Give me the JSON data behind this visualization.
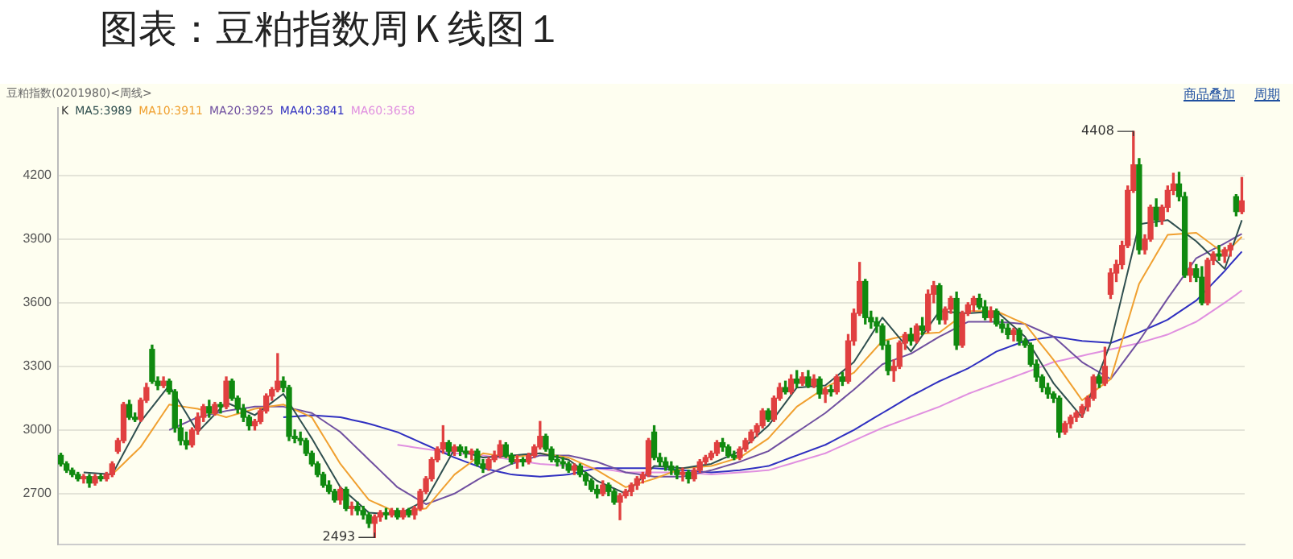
{
  "chart_data": {
    "type": "candlestick",
    "title": "图表：豆粕指数周Ｋ线图１",
    "subtitle": "豆粕指数(0201980)<周线>",
    "legend_title": "K",
    "annotations": [
      "商品叠加",
      "周期",
      "4408",
      "2493"
    ],
    "categories": [
      null,
      null,
      null,
      null,
      null,
      null,
      null,
      null,
      null,
      null,
      null,
      null,
      null,
      null,
      null,
      null,
      null,
      null,
      null,
      null,
      null,
      null,
      null,
      null,
      null,
      null,
      null,
      null,
      null,
      null,
      null,
      null,
      null,
      null,
      null,
      null,
      null,
      null,
      null,
      null,
      null,
      null,
      null,
      null,
      null,
      null,
      null,
      null,
      null,
      null,
      null,
      null,
      null,
      null,
      null,
      null,
      null,
      null,
      null,
      null,
      null,
      null,
      null,
      null,
      null,
      null,
      null,
      null,
      null,
      null,
      null,
      null,
      null,
      null,
      null,
      null,
      null,
      null,
      null,
      null,
      null,
      null,
      null,
      null,
      null,
      null,
      null,
      null,
      null,
      null,
      null,
      null,
      null,
      null,
      null,
      null,
      null,
      null,
      null,
      null,
      null,
      null,
      null,
      null,
      null,
      null,
      null,
      null,
      null,
      null,
      null,
      null,
      null,
      null,
      null,
      null,
      null,
      null,
      null,
      null,
      null,
      null,
      null,
      null,
      null,
      null,
      null,
      null,
      null,
      null,
      null,
      null,
      null,
      null,
      null,
      null,
      null,
      null,
      null,
      null,
      null,
      null,
      null,
      null,
      null,
      null,
      null,
      null,
      null,
      null,
      null,
      null,
      null,
      null,
      null,
      null,
      null,
      null,
      null,
      null,
      null,
      null,
      null,
      null,
      null,
      null,
      null,
      null,
      null,
      null,
      null,
      null,
      null,
      null,
      null,
      null,
      null,
      null,
      null,
      null,
      null,
      null,
      null,
      null,
      null,
      null,
      null,
      null,
      null,
      null,
      null,
      null,
      null,
      null,
      null,
      null,
      null,
      null,
      null,
      null,
      null,
      null,
      null,
      null,
      null,
      null,
      null,
      null
    ],
    "ohlc": [
      [
        2880,
        2890,
        2830,
        2840
      ],
      [
        2840,
        2850,
        2800,
        2810
      ],
      [
        2810,
        2820,
        2780,
        2790
      ],
      [
        2790,
        2800,
        2760,
        2770
      ],
      [
        2770,
        2790,
        2750,
        2780
      ],
      [
        2780,
        2790,
        2730,
        2750
      ],
      [
        2750,
        2790,
        2740,
        2780
      ],
      [
        2780,
        2790,
        2760,
        2770
      ],
      [
        2770,
        2800,
        2760,
        2790
      ],
      [
        2790,
        2850,
        2780,
        2840
      ],
      [
        2900,
        2960,
        2890,
        2950
      ],
      [
        2950,
        3130,
        2940,
        3120
      ],
      [
        3120,
        3140,
        3050,
        3060
      ],
      [
        3060,
        3080,
        3040,
        3050
      ],
      [
        3050,
        3150,
        3040,
        3140
      ],
      [
        3140,
        3220,
        3130,
        3200
      ],
      [
        3380,
        3400,
        3220,
        3230
      ],
      [
        3230,
        3250,
        3190,
        3210
      ],
      [
        3210,
        3250,
        3200,
        3230
      ],
      [
        3230,
        3240,
        3170,
        3180
      ],
      [
        3180,
        3190,
        2990,
        3010
      ],
      [
        3010,
        3050,
        2930,
        2950
      ],
      [
        2950,
        2990,
        2910,
        2930
      ],
      [
        2930,
        3010,
        2920,
        3000
      ],
      [
        3000,
        3080,
        2980,
        3060
      ],
      [
        3060,
        3120,
        3040,
        3110
      ],
      [
        3110,
        3140,
        3060,
        3080
      ],
      [
        3080,
        3130,
        3070,
        3120
      ],
      [
        3120,
        3130,
        3080,
        3110
      ],
      [
        3110,
        3250,
        3100,
        3230
      ],
      [
        3230,
        3240,
        3140,
        3150
      ],
      [
        3150,
        3160,
        3080,
        3100
      ],
      [
        3100,
        3120,
        3040,
        3060
      ],
      [
        3060,
        3070,
        3000,
        3020
      ],
      [
        3020,
        3050,
        3000,
        3040
      ],
      [
        3040,
        3100,
        3030,
        3090
      ],
      [
        3090,
        3170,
        3080,
        3160
      ],
      [
        3160,
        3200,
        3140,
        3190
      ],
      [
        3190,
        3360,
        3180,
        3230
      ],
      [
        3230,
        3250,
        3180,
        3200
      ],
      [
        3200,
        3210,
        2950,
        2970
      ],
      [
        2970,
        3000,
        2940,
        2960
      ],
      [
        2960,
        2990,
        2930,
        2950
      ],
      [
        2950,
        2960,
        2880,
        2890
      ],
      [
        2890,
        2900,
        2830,
        2840
      ],
      [
        2840,
        2850,
        2780,
        2790
      ],
      [
        2790,
        2800,
        2730,
        2740
      ],
      [
        2740,
        2760,
        2700,
        2710
      ],
      [
        2710,
        2720,
        2660,
        2670
      ],
      [
        2670,
        2730,
        2650,
        2720
      ],
      [
        2720,
        2730,
        2620,
        2630
      ],
      [
        2630,
        2660,
        2600,
        2640
      ],
      [
        2640,
        2660,
        2600,
        2620
      ],
      [
        2620,
        2640,
        2580,
        2600
      ],
      [
        2600,
        2610,
        2540,
        2560
      ],
      [
        2560,
        2600,
        2493,
        2590
      ],
      [
        2590,
        2620,
        2570,
        2610
      ],
      [
        2610,
        2630,
        2580,
        2600
      ],
      [
        2600,
        2630,
        2590,
        2620
      ],
      [
        2620,
        2630,
        2580,
        2590
      ],
      [
        2590,
        2630,
        2580,
        2620
      ],
      [
        2620,
        2630,
        2590,
        2600
      ],
      [
        2600,
        2640,
        2580,
        2630
      ],
      [
        2630,
        2720,
        2620,
        2710
      ],
      [
        2710,
        2780,
        2700,
        2770
      ],
      [
        2770,
        2870,
        2760,
        2860
      ],
      [
        2860,
        2920,
        2850,
        2910
      ],
      [
        2910,
        3020,
        2890,
        2940
      ],
      [
        2940,
        2950,
        2880,
        2900
      ],
      [
        2900,
        2930,
        2880,
        2920
      ],
      [
        2920,
        2930,
        2880,
        2900
      ],
      [
        2900,
        2920,
        2870,
        2890
      ],
      [
        2890,
        2910,
        2860,
        2900
      ],
      [
        2900,
        2910,
        2830,
        2840
      ],
      [
        2840,
        2860,
        2800,
        2820
      ],
      [
        2820,
        2870,
        2810,
        2860
      ],
      [
        2860,
        2900,
        2850,
        2880
      ],
      [
        2880,
        2950,
        2870,
        2930
      ],
      [
        2930,
        2940,
        2870,
        2880
      ],
      [
        2880,
        2890,
        2840,
        2850
      ],
      [
        2850,
        2880,
        2820,
        2860
      ],
      [
        2860,
        2870,
        2830,
        2850
      ],
      [
        2850,
        2890,
        2840,
        2880
      ],
      [
        2880,
        2930,
        2870,
        2920
      ],
      [
        2920,
        3040,
        2910,
        2970
      ],
      [
        2970,
        2980,
        2900,
        2910
      ],
      [
        2910,
        2920,
        2850,
        2860
      ],
      [
        2860,
        2880,
        2830,
        2850
      ],
      [
        2850,
        2870,
        2820,
        2840
      ],
      [
        2840,
        2850,
        2800,
        2810
      ],
      [
        2810,
        2840,
        2790,
        2830
      ],
      [
        2830,
        2840,
        2780,
        2790
      ],
      [
        2790,
        2800,
        2740,
        2760
      ],
      [
        2760,
        2770,
        2710,
        2720
      ],
      [
        2720,
        2740,
        2680,
        2700
      ],
      [
        2700,
        2760,
        2690,
        2740
      ],
      [
        2740,
        2750,
        2690,
        2710
      ],
      [
        2710,
        2720,
        2650,
        2660
      ],
      [
        2660,
        2700,
        2577,
        2690
      ],
      [
        2690,
        2720,
        2680,
        2710
      ],
      [
        2710,
        2750,
        2690,
        2740
      ],
      [
        2740,
        2780,
        2720,
        2770
      ],
      [
        2770,
        2800,
        2750,
        2790
      ],
      [
        2790,
        2960,
        2780,
        2950
      ],
      [
        2990,
        3020,
        2860,
        2870
      ],
      [
        2870,
        2890,
        2830,
        2850
      ],
      [
        2850,
        2870,
        2810,
        2830
      ],
      [
        2830,
        2850,
        2790,
        2810
      ],
      [
        2810,
        2830,
        2770,
        2790
      ],
      [
        2790,
        2820,
        2760,
        2800
      ],
      [
        2800,
        2810,
        2750,
        2770
      ],
      [
        2770,
        2820,
        2760,
        2810
      ],
      [
        2810,
        2860,
        2800,
        2850
      ],
      [
        2850,
        2880,
        2840,
        2870
      ],
      [
        2870,
        2900,
        2860,
        2890
      ],
      [
        2890,
        2950,
        2880,
        2940
      ],
      [
        2940,
        2960,
        2900,
        2920
      ],
      [
        2920,
        2930,
        2870,
        2880
      ],
      [
        2880,
        2900,
        2860,
        2870
      ],
      [
        2870,
        2920,
        2860,
        2910
      ],
      [
        2910,
        2960,
        2900,
        2950
      ],
      [
        2950,
        3000,
        2940,
        2990
      ],
      [
        2990,
        3030,
        2970,
        3020
      ],
      [
        3020,
        3100,
        3010,
        3090
      ],
      [
        3090,
        3100,
        3040,
        3050
      ],
      [
        3050,
        3160,
        3040,
        3150
      ],
      [
        3150,
        3220,
        3140,
        3200
      ],
      [
        3200,
        3230,
        3170,
        3180
      ],
      [
        3180,
        3260,
        3170,
        3240
      ],
      [
        3240,
        3280,
        3200,
        3220
      ],
      [
        3220,
        3270,
        3210,
        3250
      ],
      [
        3250,
        3280,
        3200,
        3210
      ],
      [
        3210,
        3260,
        3200,
        3240
      ],
      [
        3240,
        3250,
        3150,
        3170
      ],
      [
        3170,
        3200,
        3130,
        3190
      ],
      [
        3190,
        3210,
        3160,
        3180
      ],
      [
        3180,
        3260,
        3170,
        3250
      ],
      [
        3250,
        3270,
        3210,
        3230
      ],
      [
        3230,
        3450,
        3220,
        3420
      ],
      [
        3420,
        3570,
        3400,
        3550
      ],
      [
        3550,
        3790,
        3540,
        3700
      ],
      [
        3700,
        3710,
        3500,
        3530
      ],
      [
        3530,
        3560,
        3480,
        3510
      ],
      [
        3510,
        3530,
        3460,
        3490
      ],
      [
        3490,
        3500,
        3380,
        3400
      ],
      [
        3400,
        3420,
        3260,
        3280
      ],
      [
        3280,
        3330,
        3230,
        3300
      ],
      [
        3300,
        3420,
        3290,
        3410
      ],
      [
        3410,
        3460,
        3380,
        3450
      ],
      [
        3450,
        3480,
        3400,
        3420
      ],
      [
        3420,
        3500,
        3410,
        3490
      ],
      [
        3490,
        3530,
        3450,
        3470
      ],
      [
        3470,
        3660,
        3460,
        3640
      ],
      [
        3640,
        3700,
        3600,
        3680
      ],
      [
        3680,
        3690,
        3500,
        3520
      ],
      [
        3520,
        3580,
        3500,
        3570
      ],
      [
        3570,
        3630,
        3550,
        3620
      ],
      [
        3620,
        3650,
        3380,
        3400
      ],
      [
        3400,
        3560,
        3390,
        3550
      ],
      [
        3550,
        3600,
        3540,
        3590
      ],
      [
        3590,
        3630,
        3560,
        3620
      ],
      [
        3620,
        3640,
        3570,
        3580
      ],
      [
        3580,
        3610,
        3520,
        3530
      ],
      [
        3530,
        3580,
        3510,
        3560
      ],
      [
        3560,
        3570,
        3490,
        3500
      ],
      [
        3500,
        3520,
        3460,
        3480
      ],
      [
        3480,
        3500,
        3430,
        3450
      ],
      [
        3450,
        3480,
        3420,
        3470
      ],
      [
        3470,
        3480,
        3400,
        3420
      ],
      [
        3420,
        3430,
        3390,
        3400
      ],
      [
        3400,
        3410,
        3300,
        3310
      ],
      [
        3310,
        3330,
        3230,
        3250
      ],
      [
        3250,
        3260,
        3180,
        3200
      ],
      [
        3200,
        3220,
        3150,
        3170
      ],
      [
        3170,
        3180,
        3130,
        3150
      ],
      [
        3150,
        3160,
        2965,
        2990
      ],
      [
        2990,
        3040,
        2980,
        3030
      ],
      [
        3030,
        3070,
        3010,
        3060
      ],
      [
        3060,
        3090,
        3040,
        3080
      ],
      [
        3080,
        3120,
        3060,
        3110
      ],
      [
        3110,
        3160,
        3090,
        3150
      ],
      [
        3150,
        3260,
        3140,
        3250
      ],
      [
        3250,
        3260,
        3200,
        3220
      ],
      [
        3220,
        3390,
        3210,
        3300
      ],
      [
        3640,
        3760,
        3620,
        3740
      ],
      [
        3740,
        3800,
        3700,
        3780
      ],
      [
        3780,
        3890,
        3760,
        3870
      ],
      [
        3870,
        4150,
        3860,
        4130
      ],
      [
        4130,
        4408,
        4120,
        4250
      ],
      [
        4250,
        4280,
        3830,
        3850
      ],
      [
        3850,
        3920,
        3830,
        3900
      ],
      [
        3900,
        4060,
        3890,
        4050
      ],
      [
        4050,
        4090,
        3960,
        3990
      ],
      [
        3990,
        4060,
        3970,
        4050
      ],
      [
        4050,
        4150,
        4030,
        4130
      ],
      [
        4130,
        4210,
        4110,
        4160
      ],
      [
        4160,
        4215,
        4080,
        4100
      ],
      [
        4100,
        4120,
        3720,
        3730
      ],
      [
        3730,
        3790,
        3700,
        3760
      ],
      [
        3760,
        3780,
        3700,
        3720
      ],
      [
        3720,
        3770,
        3590,
        3600
      ],
      [
        3600,
        3810,
        3590,
        3800
      ],
      [
        3800,
        3840,
        3780,
        3830
      ],
      [
        3830,
        3870,
        3800,
        3820
      ],
      [
        3820,
        3860,
        3790,
        3850
      ],
      [
        3850,
        3880,
        3820,
        3870
      ],
      [
        4100,
        4110,
        4010,
        4030
      ],
      [
        4030,
        4190,
        4020,
        4080
      ]
    ],
    "series": [
      {
        "type": "line",
        "name": "MA5:3989",
        "color": "#2f4f4f",
        "values": [
          null,
          null,
          null,
          null,
          2800,
          2798,
          2796,
          2794,
          2792,
          2790,
          2840,
          2890,
          2940,
          2990,
          3040,
          3074,
          3108,
          3142,
          3176,
          3210,
          3166,
          3122,
          3078,
          3034,
          2990,
          3018,
          3046,
          3074,
          3102,
          3130,
          3118,
          3106,
          3094,
          3082,
          3070,
          3090,
          3110,
          3130,
          3150,
          3170,
          3128,
          3086,
          3044,
          3002,
          2960,
          2914,
          2868,
          2822,
          2776,
          2730,
          2706,
          2682,
          2658,
          2634,
          2610,
          2608,
          2606,
          2604,
          2602,
          2600,
          2614,
          2628,
          2642,
          2656,
          2670,
          2718,
          2766,
          2814,
          2862,
          2910,
          2902,
          2894,
          2886,
          2878,
          2870,
          2872,
          2874,
          2876,
          2878,
          2880,
          2882,
          2884,
          2886,
          2888,
          2890,
          2884,
          2878,
          2872,
          2866,
          2860,
          2840,
          2820,
          2800,
          2780,
          2760,
          2748,
          2736,
          2724,
          2712,
          2700,
          2726,
          2752,
          2778,
          2804,
          2830,
          2828,
          2826,
          2824,
          2822,
          2820,
          2824,
          2828,
          2832,
          2836,
          2840,
          2852,
          2864,
          2876,
          2888,
          2900,
          2924,
          2948,
          2972,
          2996,
          3020,
          3056,
          3092,
          3128,
          3164,
          3200,
          3202,
          3204,
          3206,
          3208,
          3210,
          3232,
          3254,
          3276,
          3298,
          3320,
          3362,
          3404,
          3446,
          3488,
          3530,
          3498,
          3466,
          3434,
          3402,
          3370,
          3408,
          3446,
          3484,
          3522,
          3560,
          3558,
          3556,
          3554,
          3552,
          3550,
          3552,
          3554,
          3556,
          3558,
          3560,
          3536,
          3512,
          3488,
          3464,
          3440,
          3396,
          3352,
          3308,
          3264,
          3220,
          3188,
          3156,
          3124,
          3092,
          3060,
          3130,
          3200,
          3270,
          3340,
          3410,
          3522,
          3634,
          3746,
          3858,
          3970,
          3974,
          3978,
          3982,
          3986,
          3990,
          3970,
          3950,
          3930,
          3910,
          3890,
          3864,
          3838,
          3812,
          3786,
          3760,
          3836,
          3912,
          3989
        ]
      },
      {
        "type": "line",
        "name": "MA10:3911",
        "color": "#f0a030",
        "values": [
          null,
          null,
          null,
          null,
          null,
          null,
          null,
          null,
          null,
          2790,
          2816,
          2842,
          2868,
          2894,
          2920,
          2960,
          3000,
          3040,
          3080,
          3120,
          3116,
          3112,
          3108,
          3104,
          3100,
          3092,
          3084,
          3076,
          3068,
          3060,
          3068,
          3076,
          3084,
          3092,
          3100,
          3104,
          3108,
          3112,
          3116,
          3120,
          3108,
          3096,
          3084,
          3072,
          3060,
          3016,
          2972,
          2928,
          2884,
          2840,
          2806,
          2772,
          2738,
          2704,
          2670,
          2658,
          2646,
          2634,
          2622,
          2610,
          2614,
          2618,
          2622,
          2626,
          2630,
          2662,
          2694,
          2726,
          2758,
          2790,
          2810,
          2830,
          2850,
          2870,
          2890,
          2886,
          2882,
          2878,
          2874,
          2870,
          2874,
          2878,
          2882,
          2886,
          2890,
          2886,
          2882,
          2878,
          2874,
          2870,
          2858,
          2846,
          2834,
          2822,
          2810,
          2794,
          2778,
          2762,
          2746,
          2730,
          2738,
          2746,
          2754,
          2762,
          2770,
          2780,
          2790,
          2800,
          2810,
          2820,
          2822,
          2824,
          2826,
          2828,
          2830,
          2838,
          2846,
          2854,
          2862,
          2870,
          2888,
          2906,
          2924,
          2942,
          2960,
          2990,
          3020,
          3050,
          3080,
          3110,
          3128,
          3146,
          3164,
          3182,
          3200,
          3214,
          3228,
          3242,
          3256,
          3270,
          3300,
          3330,
          3360,
          3390,
          3420,
          3426,
          3432,
          3438,
          3444,
          3450,
          3452,
          3454,
          3456,
          3458,
          3460,
          3480,
          3500,
          3520,
          null,
          3560,
          3560,
          3560,
          3560,
          3560,
          3560,
          3548,
          3536,
          3524,
          3512,
          3500,
          3466,
          3432,
          3398,
          3364,
          3330,
          3292,
          3254,
          3216,
          3178,
          3140,
          3160,
          3180,
          3200,
          3220,
          3240,
          3330,
          3420,
          3510,
          3600,
          3690,
          3736,
          3782,
          3828,
          3874,
          3920,
          3922,
          3924,
          3926,
          3928,
          3930,
          3910,
          3890,
          3870,
          3850,
          3830,
          3857,
          3884,
          3911
        ]
      },
      {
        "type": "line",
        "name": "MA20:3925",
        "color": "#7050a0",
        "values": [
          null,
          null,
          null,
          null,
          null,
          null,
          null,
          null,
          null,
          null,
          null,
          null,
          null,
          null,
          null,
          null,
          null,
          null,
          null,
          3000,
          3012,
          3024,
          3036,
          3048,
          3060,
          3066,
          3072,
          3078,
          3084,
          3090,
          3094,
          3098,
          3102,
          3106,
          3110,
          3110,
          3110,
          3110,
          3110,
          3110,
          3104,
          3098,
          3092,
          3086,
          3080,
          3062,
          3044,
          3026,
          3008,
          2990,
          2964,
          2938,
          2912,
          2886,
          2860,
          2834,
          2808,
          2782,
          2756,
          2730,
          2714,
          2698,
          2682,
          2666,
          2650,
          2660,
          2670,
          2680,
          2690,
          2700,
          2716,
          2732,
          2748,
          2764,
          2780,
          2792,
          2804,
          2816,
          2828,
          2840,
          2848,
          2856,
          2864,
          2872,
          2880,
          2880,
          2880,
          2880,
          2880,
          2880,
          2874,
          2868,
          2862,
          2856,
          2850,
          2840,
          2830,
          2820,
          2810,
          2800,
          2796,
          2792,
          2788,
          2784,
          2780,
          2780,
          2780,
          2780,
          2780,
          2780,
          2786,
          2792,
          2798,
          2804,
          2810,
          2818,
          2826,
          2834,
          2842,
          2850,
          2860,
          2870,
          2880,
          2890,
          2900,
          2918,
          2936,
          2954,
          2972,
          2990,
          3008,
          3026,
          3044,
          3062,
          3080,
          3102,
          3124,
          3146,
          3168,
          3190,
          3214,
          3238,
          3262,
          3286,
          3310,
          3320,
          3330,
          3340,
          3350,
          3360,
          3376,
          3392,
          3408,
          3424,
          3440,
          3454,
          3468,
          3482,
          3496,
          3510,
          3510,
          3510,
          3510,
          3510,
          3510,
          3508,
          3506,
          3504,
          3502,
          3500,
          3488,
          3476,
          3464,
          3452,
          3440,
          3416,
          3392,
          3368,
          3344,
          3320,
          3304,
          3288,
          3272,
          3256,
          3240,
          3276,
          3312,
          3348,
          3384,
          3420,
          3460,
          3500,
          3540,
          3580,
          3620,
          3658,
          3696,
          3734,
          3772,
          3810,
          3824,
          3838,
          3852,
          3866,
          3880,
          3895,
          3910,
          3925
        ]
      },
      {
        "type": "line",
        "name": "MA40:3841",
        "color": "#3030c0",
        "values": [
          null,
          null,
          null,
          null,
          null,
          null,
          null,
          null,
          null,
          null,
          null,
          null,
          null,
          null,
          null,
          null,
          null,
          null,
          null,
          null,
          null,
          null,
          null,
          null,
          null,
          null,
          null,
          null,
          null,
          null,
          null,
          null,
          null,
          null,
          null,
          null,
          null,
          null,
          null,
          3060,
          3062,
          3064,
          3066,
          3068,
          3070,
          3068,
          3066,
          3064,
          3062,
          3060,
          3054,
          3048,
          3042,
          3036,
          3030,
          3022,
          3014,
          3006,
          2998,
          2990,
          2978,
          2966,
          2954,
          2942,
          2930,
          2918,
          2906,
          2894,
          2882,
          2870,
          2860,
          2850,
          2840,
          2830,
          2820,
          2814,
          2808,
          2802,
          2796,
          2790,
          2788,
          2786,
          2784,
          2782,
          2780,
          2782,
          2784,
          2786,
          2788,
          2790,
          2796,
          2802,
          2808,
          2814,
          2820,
          2820,
          2820,
          2820,
          2820,
          2820,
          2820,
          2820,
          2820,
          2820,
          2820,
          2818,
          2816,
          2814,
          2812,
          2810,
          2808,
          2806,
          2804,
          2802,
          2800,
          2802,
          2804,
          2806,
          2808,
          2810,
          2814,
          2818,
          2822,
          2826,
          2830,
          2840,
          2850,
          2860,
          2870,
          2880,
          2890,
          2900,
          2910,
          2920,
          2930,
          2944,
          2958,
          2972,
          2986,
          3000,
          3016,
          3032,
          3048,
          3064,
          3080,
          3096,
          3112,
          3128,
          3144,
          3160,
          3174,
          3188,
          3202,
          3216,
          3230,
          3242,
          3254,
          3266,
          3278,
          3290,
          3306,
          3322,
          3338,
          3354,
          3370,
          3380,
          3390,
          3400,
          3410,
          3420,
          3424,
          3428,
          3432,
          3436,
          3440,
          3436,
          3432,
          3428,
          3424,
          3420,
          3418,
          3416,
          3414,
          3412,
          3410,
          3420,
          3430,
          3440,
          3450,
          3460,
          3472,
          3484,
          3496,
          3508,
          3520,
          3538,
          3556,
          3574,
          3592,
          3610,
          3638,
          3666,
          3694,
          3722,
          3750,
          3781,
          3811,
          3841
        ]
      },
      {
        "type": "line",
        "name": "MA60:3658",
        "color": "#e090e0",
        "values": [
          null,
          null,
          null,
          null,
          null,
          null,
          null,
          null,
          null,
          null,
          null,
          null,
          null,
          null,
          null,
          null,
          null,
          null,
          null,
          null,
          null,
          null,
          null,
          null,
          null,
          null,
          null,
          null,
          null,
          null,
          null,
          null,
          null,
          null,
          null,
          null,
          null,
          null,
          null,
          null,
          null,
          null,
          null,
          null,
          null,
          null,
          null,
          null,
          null,
          null,
          null,
          null,
          null,
          null,
          null,
          null,
          null,
          null,
          null,
          2930,
          2926,
          2922,
          2918,
          2914,
          2910,
          2906,
          2902,
          2898,
          2894,
          2890,
          2888,
          2886,
          2884,
          2882,
          2880,
          2876,
          2872,
          2868,
          2864,
          2860,
          2856,
          2852,
          2848,
          2844,
          2840,
          2838,
          2836,
          2834,
          2832,
          2830,
          2828,
          2826,
          2824,
          2822,
          2820,
          2816,
          2812,
          2808,
          2804,
          2800,
          2800,
          2800,
          2800,
          2800,
          2800,
          2800,
          2800,
          2800,
          2800,
          2800,
          2798,
          2796,
          2794,
          2792,
          2790,
          2792,
          2794,
          2796,
          2798,
          2800,
          2802,
          2804,
          2806,
          2808,
          2810,
          2818,
          2826,
          2834,
          2842,
          2850,
          2858,
          2866,
          2874,
          2882,
          2890,
          2902,
          2914,
          2926,
          2938,
          2950,
          2962,
          2974,
          2986,
          2998,
          3010,
          3020,
          3030,
          3040,
          3050,
          3060,
          3070,
          3080,
          3090,
          3100,
          3110,
          3122,
          3134,
          3146,
          3158,
          3170,
          3180,
          3190,
          3200,
          3210,
          3220,
          3230,
          3240,
          3250,
          3260,
          3270,
          3280,
          3290,
          3300,
          3310,
          3320,
          3326,
          3332,
          3338,
          3344,
          3350,
          3356,
          3362,
          3368,
          3374,
          3380,
          3386,
          3392,
          3398,
          3404,
          3410,
          3418,
          3426,
          3434,
          3442,
          3450,
          3462,
          3474,
          3486,
          3498,
          3510,
          3528,
          3546,
          3564,
          3582,
          3600,
          3619,
          3638,
          3658
        ]
      }
    ],
    "ylim": [
      2460,
      4520
    ],
    "yticks": [
      2700,
      3000,
      3300,
      3600,
      3900,
      4200
    ],
    "grid": "y",
    "tick_labels": "y"
  }
}
